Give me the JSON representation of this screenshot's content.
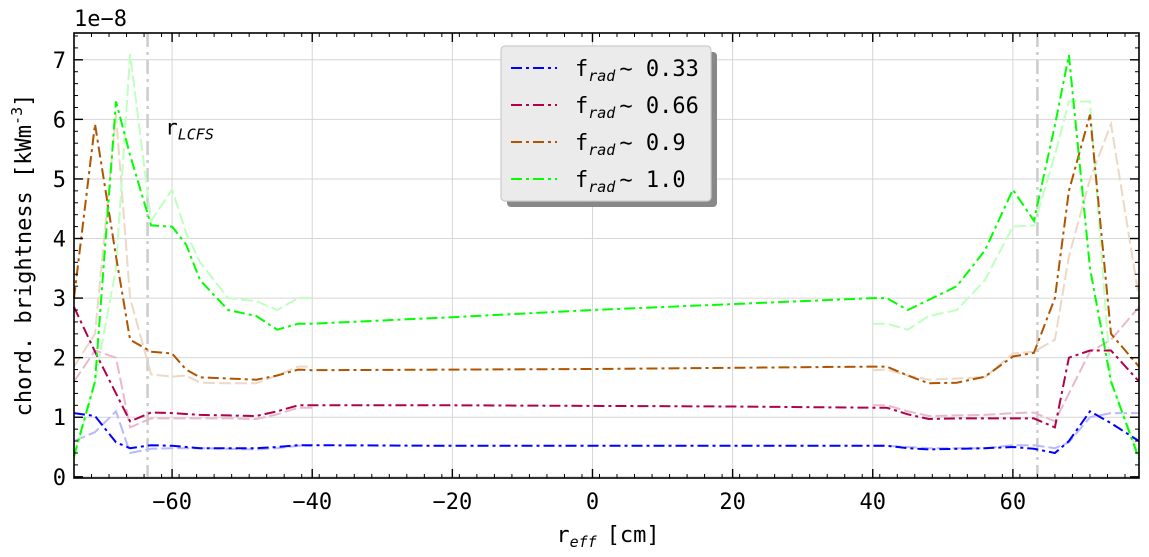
{
  "chart_data": {
    "type": "line",
    "title": "",
    "xlabel": "r",
    "xlabel_sub": "eff",
    "xlabel_unit": "[cm]",
    "ylabel": "chord. brightness [kWm",
    "ylabel_sup": "-3",
    "ylabel_end": "]",
    "y_offset_label": "1e−8",
    "xlim": [
      -74,
      78
    ],
    "ylim": [
      -0.02,
      7.45
    ],
    "x_ticks": [
      -60,
      -40,
      -20,
      0,
      20,
      40,
      60
    ],
    "x_tick_labels": [
      "−60",
      "−40",
      "−20",
      "0",
      "20",
      "40",
      "60"
    ],
    "y_ticks": [
      0,
      1,
      2,
      3,
      4,
      5,
      6,
      7
    ],
    "y_tick_labels": [
      "0",
      "1",
      "2",
      "3",
      "4",
      "5",
      "6",
      "7"
    ],
    "grid": true,
    "legend_position": "top-center",
    "lcfs_lines": [
      -63.5,
      63.5
    ],
    "lcfs_label": "r",
    "lcfs_label_sub": "LCFS",
    "lcfs_label_at": [
      -61,
      5.75
    ],
    "series": [
      {
        "name": "f",
        "name_sub": "rad",
        "name_value": "∼ 0.33",
        "color": "#0000ff",
        "x": [
          -74,
          -71,
          -68,
          -66,
          -63,
          -60,
          -56,
          -52,
          -48,
          -45,
          -42,
          -40,
          -20,
          0,
          20,
          40,
          42,
          45,
          48,
          52,
          56,
          60,
          63,
          66,
          68,
          71,
          74,
          78
        ],
        "y": [
          1.07,
          1.02,
          0.58,
          0.48,
          0.53,
          0.52,
          0.48,
          0.48,
          0.48,
          0.5,
          0.53,
          0.53,
          0.52,
          0.52,
          0.52,
          0.52,
          0.52,
          0.48,
          0.46,
          0.47,
          0.48,
          0.5,
          0.47,
          0.4,
          0.6,
          1.1,
          0.9,
          0.6
        ]
      },
      {
        "name": "f",
        "name_sub": "rad",
        "name_value": "∼ 0.66",
        "color": "#b0004e",
        "x": [
          -74,
          -71,
          -68,
          -66,
          -63,
          -60,
          -56,
          -52,
          -48,
          -45,
          -42,
          -40,
          -20,
          0,
          20,
          40,
          42,
          45,
          48,
          52,
          56,
          60,
          63,
          66,
          68,
          71,
          74,
          78
        ],
        "y": [
          2.85,
          2.1,
          1.4,
          0.93,
          1.08,
          1.07,
          1.04,
          1.03,
          1.02,
          1.1,
          1.2,
          1.2,
          1.2,
          1.19,
          1.18,
          1.16,
          1.16,
          1.05,
          0.97,
          0.98,
          0.98,
          0.98,
          0.98,
          0.83,
          2.0,
          2.12,
          2.12,
          1.6
        ]
      },
      {
        "name": "f",
        "name_sub": "rad",
        "name_value": "∼ 0.9",
        "color": "#b05400",
        "x": [
          -74,
          -71,
          -68,
          -66,
          -63,
          -60,
          -58,
          -56,
          -52,
          -48,
          -45,
          -42,
          -40,
          -20,
          0,
          20,
          40,
          42,
          45,
          48,
          52,
          56,
          60,
          63,
          66,
          68,
          71,
          74,
          78
        ],
        "y": [
          3.0,
          5.92,
          3.7,
          2.3,
          2.1,
          2.07,
          1.8,
          1.67,
          1.65,
          1.63,
          1.7,
          1.8,
          1.79,
          1.8,
          1.81,
          1.83,
          1.85,
          1.85,
          1.7,
          1.57,
          1.58,
          1.68,
          2.02,
          2.08,
          3.0,
          4.8,
          6.08,
          2.4,
          1.85
        ]
      },
      {
        "name": "f",
        "name_sub": "rad",
        "name_value": "∼ 1.0",
        "color": "#00ff00",
        "x": [
          -74,
          -71,
          -68,
          -66,
          -63,
          -60,
          -58,
          -56,
          -52,
          -48,
          -45,
          -42,
          -40,
          -20,
          0,
          20,
          40,
          42,
          45,
          48,
          52,
          56,
          60,
          63,
          66,
          68,
          71,
          74,
          78
        ],
        "y": [
          0.35,
          1.6,
          6.3,
          5.4,
          4.22,
          4.2,
          3.9,
          3.3,
          2.8,
          2.7,
          2.47,
          2.57,
          2.57,
          2.68,
          2.8,
          2.9,
          3.0,
          3.0,
          2.8,
          2.97,
          3.2,
          3.8,
          4.82,
          4.3,
          5.9,
          7.08,
          3.5,
          1.6,
          0.3
        ]
      }
    ],
    "mirrored_series": [
      {
        "color": "#b8b8ff",
        "x": [
          -74,
          -71,
          -68,
          -66,
          -63,
          -60,
          -56,
          -52,
          -48,
          -45,
          -42,
          -40
        ],
        "y": [
          0.6,
          0.75,
          1.1,
          0.4,
          0.47,
          0.48,
          0.48,
          0.47,
          0.46,
          0.48,
          0.52,
          0.52
        ]
      },
      {
        "color": "#b8b8ff",
        "x": [
          40,
          42,
          45,
          48,
          52,
          56,
          60,
          63,
          66,
          68,
          71,
          74,
          78
        ],
        "y": [
          0.52,
          0.52,
          0.5,
          0.48,
          0.48,
          0.48,
          0.53,
          0.53,
          0.48,
          0.58,
          1.0,
          1.07,
          1.07
        ]
      },
      {
        "color": "#e8b8cc",
        "x": [
          -74,
          -71,
          -68,
          -66,
          -63,
          -60,
          -56,
          -52,
          -48,
          -45,
          -42,
          -40
        ],
        "y": [
          1.6,
          2.12,
          2.0,
          0.83,
          0.98,
          0.98,
          0.98,
          0.98,
          0.97,
          1.05,
          1.16,
          1.16
        ]
      },
      {
        "color": "#e8b8cc",
        "x": [
          40,
          42,
          45,
          48,
          52,
          56,
          60,
          63,
          66,
          68,
          71,
          74,
          78
        ],
        "y": [
          1.2,
          1.2,
          1.1,
          1.02,
          1.03,
          1.04,
          1.07,
          1.08,
          0.93,
          1.4,
          2.1,
          2.3,
          2.85
        ]
      },
      {
        "color": "#ecd8c4",
        "x": [
          -74,
          -71,
          -68,
          -66,
          -63,
          -60,
          -58,
          -56,
          -52,
          -48,
          -45,
          -42,
          -40
        ],
        "y": [
          1.85,
          2.4,
          6.08,
          3.0,
          1.72,
          1.68,
          1.7,
          1.58,
          1.57,
          1.57,
          1.7,
          1.85,
          1.85
        ]
      },
      {
        "color": "#ecd8c4",
        "x": [
          40,
          42,
          45,
          48,
          52,
          56,
          60,
          63,
          66,
          68,
          71,
          74,
          78
        ],
        "y": [
          1.79,
          1.8,
          1.7,
          1.63,
          1.65,
          1.67,
          2.07,
          2.1,
          2.3,
          3.7,
          5.0,
          5.92,
          3.0
        ]
      },
      {
        "color": "#bfffbf",
        "x": [
          -74,
          -71,
          -68,
          -66,
          -63,
          -60,
          -58,
          -56,
          -52,
          -48,
          -45,
          -42,
          -40
        ],
        "y": [
          0.3,
          1.6,
          3.5,
          7.1,
          4.3,
          4.82,
          4.1,
          3.6,
          3.0,
          2.95,
          2.8,
          3.0,
          3.0
        ]
      },
      {
        "color": "#bfffbf",
        "x": [
          40,
          42,
          45,
          48,
          52,
          56,
          60,
          63,
          66,
          68,
          71,
          74,
          78
        ],
        "y": [
          2.57,
          2.57,
          2.47,
          2.7,
          2.8,
          3.3,
          4.2,
          4.22,
          5.4,
          6.3,
          6.3,
          1.6,
          0.35
        ]
      }
    ]
  }
}
